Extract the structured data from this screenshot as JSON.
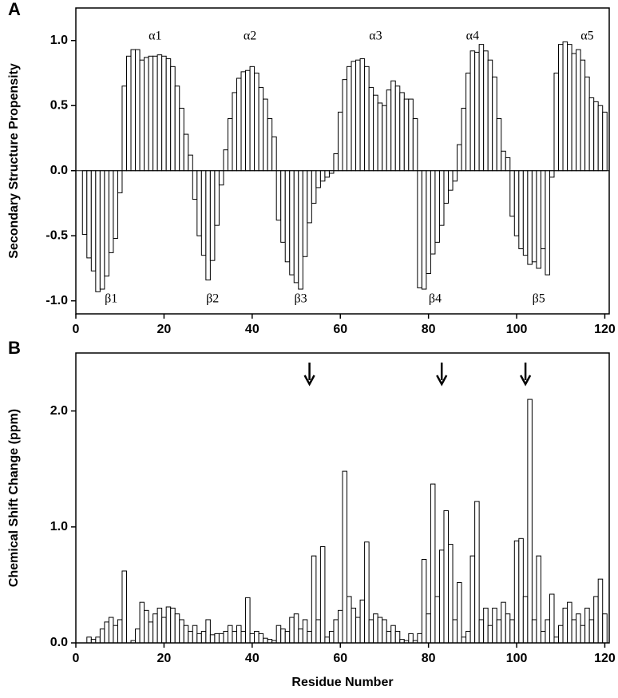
{
  "chart_data": [
    {
      "type": "bar",
      "panel_label": "A",
      "ylabel": "Secondary Structure Propensity",
      "annotations": [
        "α1",
        "α2",
        "α3",
        "α4",
        "α5",
        "β1",
        "β2",
        "β3",
        "β4",
        "β5"
      ],
      "x": [
        1,
        2,
        3,
        4,
        5,
        6,
        7,
        8,
        9,
        10,
        11,
        12,
        13,
        14,
        15,
        16,
        17,
        18,
        19,
        20,
        21,
        22,
        23,
        24,
        25,
        26,
        27,
        28,
        29,
        30,
        31,
        32,
        33,
        34,
        35,
        36,
        37,
        38,
        39,
        40,
        41,
        42,
        43,
        44,
        45,
        46,
        47,
        48,
        49,
        50,
        51,
        52,
        53,
        54,
        55,
        56,
        57,
        58,
        59,
        60,
        61,
        62,
        63,
        64,
        65,
        66,
        67,
        68,
        69,
        70,
        71,
        72,
        73,
        74,
        75,
        76,
        77,
        78,
        79,
        80,
        81,
        82,
        83,
        84,
        85,
        86,
        87,
        88,
        89,
        90,
        91,
        92,
        93,
        94,
        95,
        96,
        97,
        98,
        99,
        100,
        101,
        102,
        103,
        104,
        105,
        106,
        107,
        108,
        109,
        110,
        111,
        112,
        113,
        114,
        115,
        116,
        117,
        118,
        119,
        120
      ],
      "values": [
        null,
        -0.49,
        -0.67,
        -0.77,
        -0.93,
        -0.91,
        -0.81,
        -0.63,
        -0.52,
        -0.17,
        0.65,
        0.88,
        0.93,
        0.93,
        0.85,
        0.87,
        0.88,
        0.88,
        0.89,
        0.88,
        0.86,
        0.8,
        0.65,
        0.48,
        0.28,
        0.12,
        -0.22,
        -0.5,
        -0.65,
        -0.84,
        -0.69,
        -0.42,
        -0.11,
        0.16,
        0.4,
        0.6,
        0.71,
        0.76,
        0.77,
        0.8,
        0.75,
        0.64,
        0.55,
        0.4,
        0.26,
        -0.38,
        -0.55,
        -0.7,
        -0.8,
        -0.86,
        -0.91,
        -0.66,
        -0.4,
        -0.25,
        -0.13,
        -0.08,
        -0.05,
        -0.02,
        0.13,
        0.45,
        0.7,
        0.8,
        0.84,
        0.85,
        0.86,
        0.8,
        0.64,
        0.58,
        0.52,
        0.5,
        0.62,
        0.69,
        0.65,
        0.6,
        0.55,
        0.55,
        0.4,
        -0.9,
        -0.91,
        -0.79,
        -0.64,
        -0.55,
        -0.42,
        -0.25,
        -0.15,
        -0.08,
        0.2,
        0.48,
        0.75,
        0.92,
        0.91,
        0.97,
        0.92,
        0.85,
        0.72,
        0.4,
        0.15,
        0.1,
        -0.35,
        -0.5,
        -0.6,
        -0.65,
        -0.72,
        -0.7,
        -0.75,
        -0.6,
        -0.8,
        -0.05,
        0.75,
        0.97,
        0.99,
        0.97,
        0.9,
        0.93,
        0.85,
        0.72,
        0.56,
        0.53,
        0.5,
        0.45
      ],
      "color": "#ffffff",
      "xlim": [
        0,
        121
      ],
      "xticks": [
        0,
        20,
        40,
        60,
        80,
        100,
        120
      ],
      "ylim": [
        -1.1,
        1.25
      ],
      "yticks": [
        {
          "value": -1.0,
          "label": "-1.0"
        },
        -0.5,
        {
          "value": 0,
          "label": "0.0"
        },
        0.5,
        {
          "value": 1.0,
          "label": "1.0"
        }
      ]
    },
    {
      "type": "bar",
      "panel_label": "B",
      "ylabel": "Chemical Shift Change (ppm)",
      "xlabel": "Residue Number",
      "x": [
        1,
        2,
        3,
        4,
        5,
        6,
        7,
        8,
        9,
        10,
        11,
        12,
        13,
        14,
        15,
        16,
        17,
        18,
        19,
        20,
        21,
        22,
        23,
        24,
        25,
        26,
        27,
        28,
        29,
        30,
        31,
        32,
        33,
        34,
        35,
        36,
        37,
        38,
        39,
        40,
        41,
        42,
        43,
        44,
        45,
        46,
        47,
        48,
        49,
        50,
        51,
        52,
        53,
        54,
        55,
        56,
        57,
        58,
        59,
        60,
        61,
        62,
        63,
        64,
        65,
        66,
        67,
        68,
        69,
        70,
        71,
        72,
        73,
        74,
        75,
        76,
        77,
        78,
        79,
        80,
        81,
        82,
        83,
        84,
        85,
        86,
        87,
        88,
        89,
        90,
        91,
        92,
        93,
        94,
        95,
        96,
        97,
        98,
        99,
        100,
        101,
        102,
        103,
        104,
        105,
        106,
        107,
        108,
        109,
        110,
        111,
        112,
        113,
        114,
        115,
        116,
        117,
        118,
        119,
        120
      ],
      "values": [
        null,
        null,
        0.05,
        0.03,
        0.05,
        0.12,
        0.18,
        0.22,
        0.15,
        0.2,
        0.62,
        0,
        0.02,
        0.12,
        0.35,
        0.28,
        0.18,
        0.25,
        0.3,
        0.22,
        0.31,
        0.3,
        0.25,
        0.2,
        0.15,
        0.1,
        0.15,
        0.08,
        0.1,
        0.2,
        0.07,
        0.08,
        0.08,
        0.1,
        0.15,
        0.1,
        0.15,
        0.1,
        0.39,
        0.08,
        0.1,
        0.08,
        0.04,
        0.03,
        0.02,
        0.15,
        0.12,
        0.1,
        0.22,
        0.25,
        0.12,
        0.2,
        0.1,
        0.75,
        0.2,
        0.83,
        0.05,
        0.1,
        0.2,
        0.28,
        1.48,
        0.4,
        0.3,
        0.22,
        0.37,
        0.87,
        0.2,
        0.25,
        0.22,
        0.2,
        0.1,
        0.15,
        0.1,
        0.03,
        0.02,
        0.08,
        0.02,
        0.08,
        0.72,
        0.25,
        1.37,
        0.4,
        0.8,
        1.14,
        0.85,
        0.2,
        0.52,
        0.05,
        0.1,
        0.75,
        1.22,
        0.2,
        0.3,
        0.15,
        0.3,
        0.2,
        0.35,
        0.25,
        0.2,
        0.88,
        0.9,
        0.4,
        2.1,
        0.2,
        0.75,
        0.1,
        0.2,
        0.42,
        0.05,
        0.15,
        0.3,
        0.35,
        0.2,
        0.25,
        0.15,
        0.3,
        0.2,
        0.4,
        0.55,
        0.25
      ],
      "color": "#ffffff",
      "xlim": [
        0,
        121
      ],
      "xticks": [
        0,
        20,
        40,
        60,
        80,
        100,
        120
      ],
      "ylim": [
        0,
        2.5
      ],
      "yticks": [
        {
          "value": 0,
          "label": "0.0"
        },
        {
          "value": 1.0,
          "label": "1.0"
        },
        {
          "value": 2.0,
          "label": "2.0"
        }
      ]
    }
  ]
}
